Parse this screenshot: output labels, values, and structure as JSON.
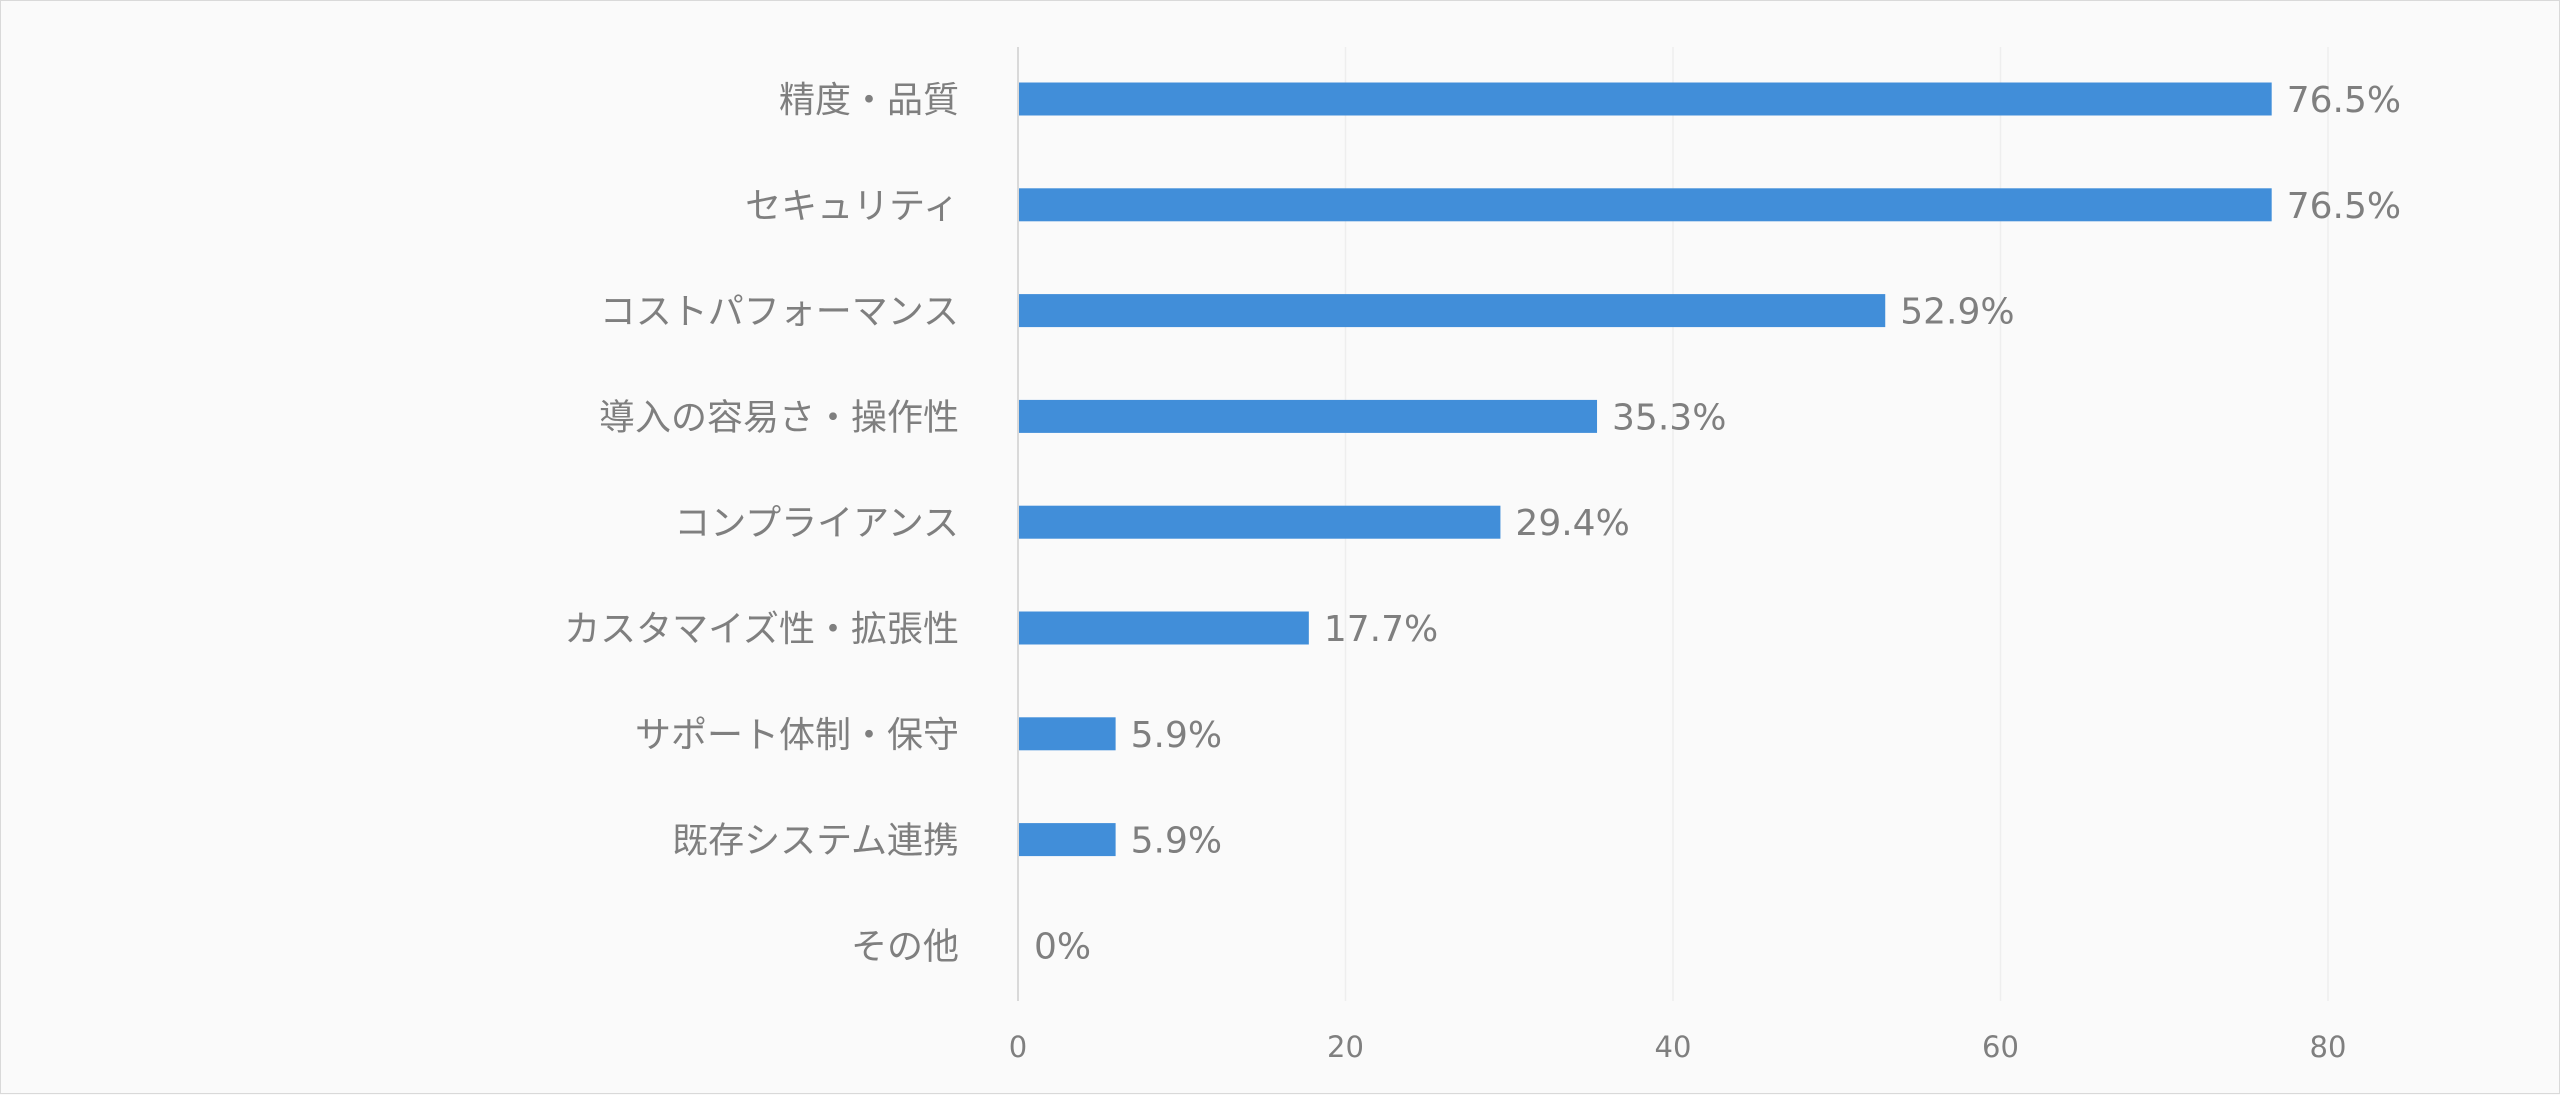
{
  "chart_data": {
    "type": "bar",
    "orientation": "horizontal",
    "categories": [
      "精度・品質",
      "セキュリティ",
      "コストパフォーマンス",
      "導入の容易さ・操作性",
      "コンプライアンス",
      "カスタマイズ性・拡張性",
      "サポート体制・保守",
      "既存システム連携",
      "その他"
    ],
    "values": [
      76.5,
      76.5,
      52.9,
      35.3,
      29.4,
      17.7,
      5.9,
      5.9,
      0
    ],
    "data_labels": [
      "76.5%",
      "76.5%",
      "52.9%",
      "35.3%",
      "29.4%",
      "17.7%",
      "5.9%",
      "5.9%",
      "0%"
    ],
    "x_ticks": [
      "0",
      "20",
      "40",
      "60",
      "80"
    ],
    "xlim": [
      0,
      90
    ],
    "grid": true,
    "legend": "none",
    "title": "",
    "xlabel": "",
    "ylabel": "",
    "colors": {
      "bar": "#418ed9",
      "text": "#7f7f7f",
      "grid": "#eeeeee",
      "axis": "#d9d9d9",
      "background": "#fafafa"
    }
  }
}
